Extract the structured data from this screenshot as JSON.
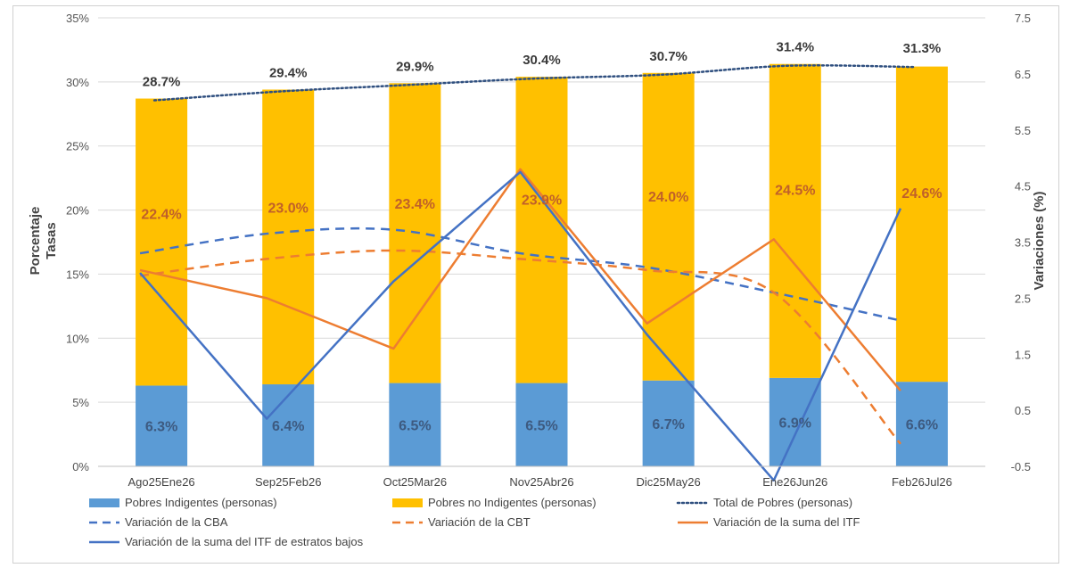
{
  "chart_data": {
    "type": "bar",
    "categories": [
      "Ago25Ene26",
      "Sep25Feb26",
      "Oct25Mar26",
      "Nov25Abr26",
      "Dic25May26",
      "Ene26Jun26",
      "Feb26Jul26"
    ],
    "ylabel_lines": [
      "Porcentaje",
      "Tasas"
    ],
    "y2label": "Variaciones (%)",
    "ylim": [
      0,
      35
    ],
    "yticks": [
      0,
      5,
      10,
      15,
      20,
      25,
      30,
      35
    ],
    "ytick_labels": [
      "0%",
      "5%",
      "10%",
      "15%",
      "20%",
      "25%",
      "30%",
      "35%"
    ],
    "y2lim": [
      -0.5,
      7.5
    ],
    "y2ticks": [
      -0.5,
      0.5,
      1.5,
      2.5,
      3.5,
      4.5,
      5.5,
      6.5,
      7.5
    ],
    "y2tick_labels": [
      "-0.5",
      "0.5",
      "1.5",
      "2.5",
      "3.5",
      "4.5",
      "5.5",
      "6.5",
      "7.5"
    ],
    "bar_series": [
      {
        "name": "Pobres Indigentes (personas)",
        "color": "#5b9bd5",
        "values": [
          6.3,
          6.4,
          6.5,
          6.5,
          6.7,
          6.9,
          6.6
        ],
        "labels": [
          "6.3%",
          "6.4%",
          "6.5%",
          "6.5%",
          "6.7%",
          "6.9%",
          "6.6%"
        ]
      },
      {
        "name": "Pobres no Indigentes (personas)",
        "color": "#ffc000",
        "values": [
          22.4,
          23.0,
          23.4,
          23.9,
          24.0,
          24.5,
          24.6
        ],
        "labels": [
          "22.4%",
          "23.0%",
          "23.4%",
          "23.9%",
          "24.0%",
          "24.5%",
          "24.6%"
        ]
      }
    ],
    "total_series": {
      "name": "Total de Pobres (personas)",
      "color": "#2f4f7f",
      "values": [
        28.7,
        29.4,
        29.9,
        30.4,
        30.7,
        31.4,
        31.3
      ],
      "labels": [
        "28.7%",
        "29.4%",
        "29.9%",
        "30.4%",
        "30.7%",
        "31.4%",
        "31.3%"
      ]
    },
    "line_series": [
      {
        "name": "Variación de la CBA",
        "color": "#4472c4",
        "style": "dashed",
        "smooth": true,
        "values": [
          3.3,
          3.65,
          3.72,
          3.3,
          3.05,
          2.6,
          2.1
        ]
      },
      {
        "name": "Variación de la CBT",
        "color": "#ed7d31",
        "style": "dashed",
        "smooth": true,
        "values": [
          2.9,
          3.2,
          3.35,
          3.2,
          3.0,
          2.6,
          -0.1
        ]
      },
      {
        "name": "Variación de la suma del ITF",
        "color": "#ed7d31",
        "style": "solid",
        "smooth": false,
        "values": [
          3.0,
          2.5,
          1.6,
          4.8,
          2.05,
          3.55,
          0.85
        ]
      },
      {
        "name": "Variación de la suma del ITF de estratos bajos",
        "color": "#4472c4",
        "style": "solid",
        "smooth": false,
        "values": [
          2.95,
          0.35,
          2.8,
          4.75,
          1.85,
          -0.75,
          4.1
        ]
      }
    ],
    "legend": [
      {
        "name": "Pobres Indigentes (personas)",
        "kind": "rect",
        "color": "#5b9bd5"
      },
      {
        "name": "Pobres no Indigentes (personas)",
        "kind": "rect",
        "color": "#ffc000"
      },
      {
        "name": "Total de Pobres (personas)",
        "kind": "dotted",
        "color": "#2f4f7f"
      },
      {
        "name": "Variación de la CBA",
        "kind": "dashed",
        "color": "#4472c4"
      },
      {
        "name": "Variación de la CBT",
        "kind": "dashed",
        "color": "#ed7d31"
      },
      {
        "name": "Variación de la suma del ITF",
        "kind": "solid",
        "color": "#ed7d31"
      },
      {
        "name": "Variación de la suma del ITF de estratos bajos",
        "kind": "solid",
        "color": "#4472c4"
      }
    ],
    "grid": true,
    "legend_position": "bottom"
  }
}
